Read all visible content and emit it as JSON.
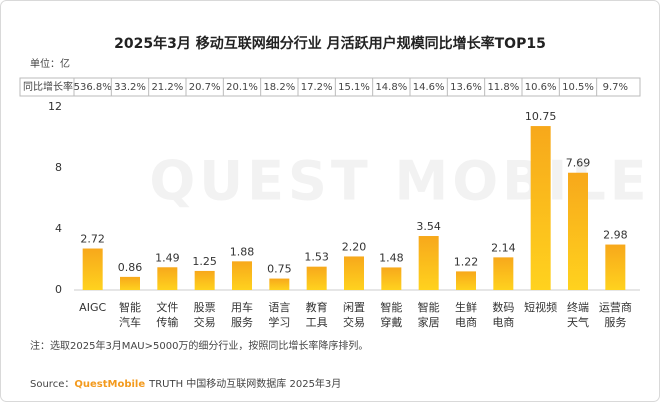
{
  "chart_data": {
    "type": "bar",
    "title": "2025年3月 移动互联网细分行业 月活跃用户规模同比增长率TOP15",
    "unit_label": "单位：亿",
    "watermark": "QUEST MOBILE",
    "categories": [
      [
        "AIGC"
      ],
      [
        "智能",
        "汽车"
      ],
      [
        "文件",
        "传输"
      ],
      [
        "股票",
        "交易"
      ],
      [
        "用车",
        "服务"
      ],
      [
        "语言",
        "学习"
      ],
      [
        "教育",
        "工具"
      ],
      [
        "闲置",
        "交易"
      ],
      [
        "智能",
        "穿戴"
      ],
      [
        "智能",
        "家居"
      ],
      [
        "生鲜",
        "电商"
      ],
      [
        "数码",
        "电商"
      ],
      [
        "短视频"
      ],
      [
        "终端",
        "天气"
      ],
      [
        "运营商",
        "服务"
      ]
    ],
    "values": [
      2.72,
      0.86,
      1.49,
      1.25,
      1.88,
      0.75,
      1.53,
      2.2,
      1.48,
      3.54,
      1.22,
      2.14,
      10.75,
      7.69,
      2.98
    ],
    "value_labels": [
      "2.72",
      "0.86",
      "1.49",
      "1.25",
      "1.88",
      "0.75",
      "1.53",
      "2.20",
      "1.48",
      "3.54",
      "1.22",
      "2.14",
      "10.75",
      "7.69",
      "2.98"
    ],
    "color": "#fbbd16",
    "ylim": [
      0,
      12
    ],
    "yticks": [
      0,
      4,
      8,
      12
    ],
    "growth": {
      "label": "同比增长率",
      "values": [
        536.8,
        33.2,
        21.2,
        20.7,
        20.1,
        18.2,
        17.2,
        15.1,
        14.8,
        14.6,
        13.6,
        11.8,
        10.6,
        10.5,
        9.7
      ],
      "value_labels": [
        "536.8%",
        "33.2%",
        "21.2%",
        "20.7%",
        "20.1%",
        "18.2%",
        "17.2%",
        "15.1%",
        "14.8%",
        "14.6%",
        "13.6%",
        "11.8%",
        "10.6%",
        "10.5%",
        "9.7%"
      ]
    },
    "note": "注：选取2025年3月MAU>5000万的细分行业，按照同比增长率降序排列。",
    "source_prefix": "Source：",
    "source_brand": "QuestMobile",
    "source_text": "TRUTH 中国移动互联网数据库 2025年3月"
  }
}
